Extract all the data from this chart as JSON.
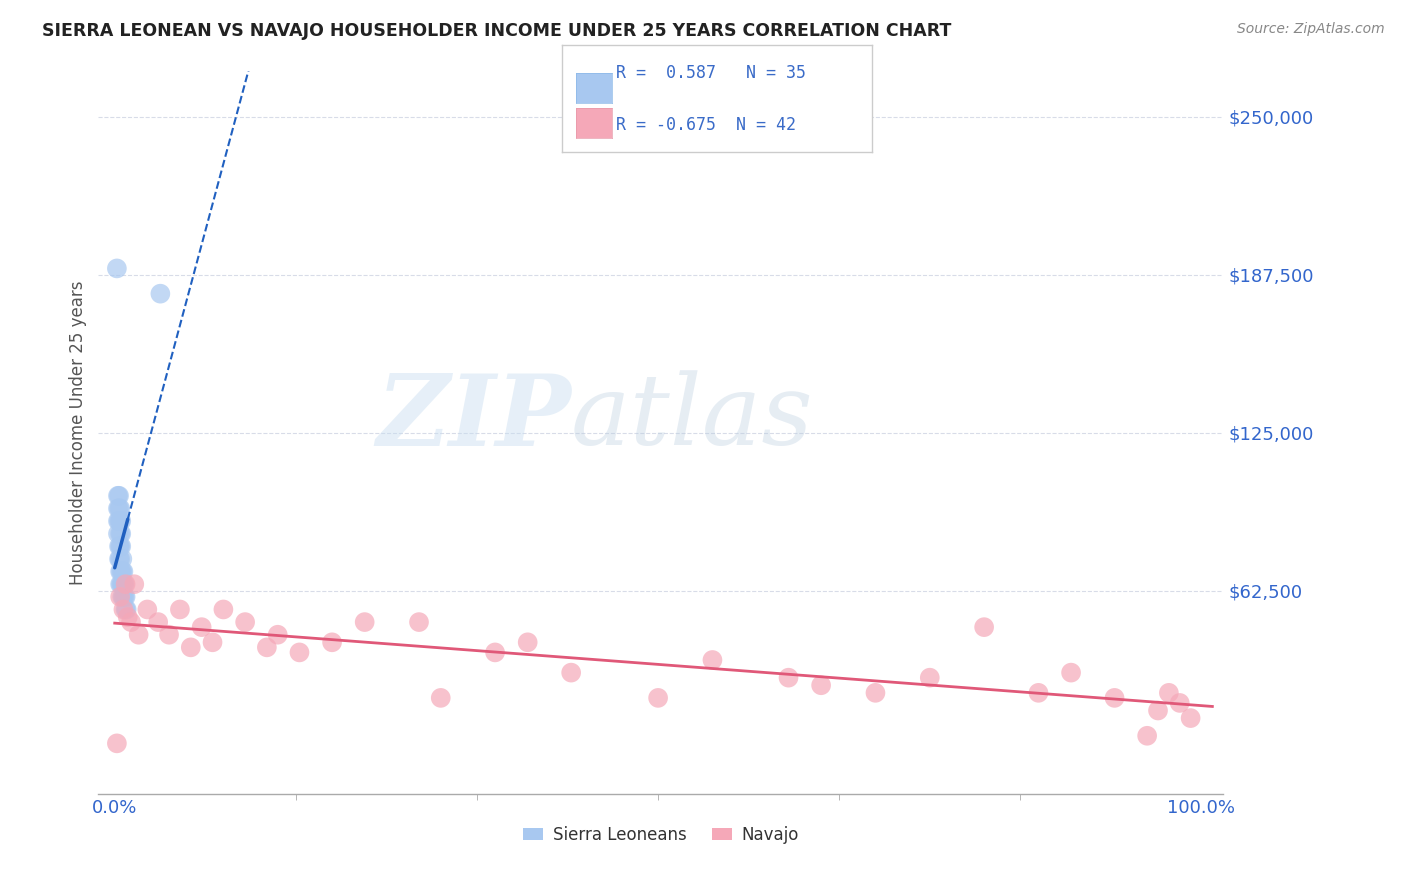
{
  "title": "SIERRA LEONEAN VS NAVAJO HOUSEHOLDER INCOME UNDER 25 YEARS CORRELATION CHART",
  "source": "Source: ZipAtlas.com",
  "ylabel": "Householder Income Under 25 years",
  "ytick_labels": [
    "$62,500",
    "$125,000",
    "$187,500",
    "$250,000"
  ],
  "ytick_values": [
    62500,
    125000,
    187500,
    250000
  ],
  "ylim": [
    -18000,
    268000
  ],
  "xlim": [
    -0.015,
    1.02
  ],
  "legend_blue_r": "R =  0.587",
  "legend_blue_n": "N = 35",
  "legend_pink_r": "R = -0.675",
  "legend_pink_n": "N = 42",
  "blue_scatter_color": "#a8c8f0",
  "pink_scatter_color": "#f5a8b8",
  "blue_line_color": "#2060c0",
  "pink_line_color": "#e05878",
  "legend_text_color": "#3a6bc8",
  "grid_color": "#d8dce8",
  "title_color": "#222222",
  "source_color": "#888888",
  "ylabel_color": "#555555",
  "xtick_color": "#3366cc",
  "ytick_color": "#3366cc",
  "sierra_x": [
    0.003,
    0.003,
    0.003,
    0.003,
    0.004,
    0.004,
    0.004,
    0.004,
    0.004,
    0.005,
    0.005,
    0.005,
    0.005,
    0.005,
    0.005,
    0.005,
    0.006,
    0.006,
    0.006,
    0.006,
    0.006,
    0.007,
    0.007,
    0.007,
    0.007,
    0.008,
    0.008,
    0.008,
    0.009,
    0.009,
    0.01,
    0.01,
    0.011,
    0.042,
    0.002
  ],
  "sierra_y": [
    100000,
    95000,
    90000,
    85000,
    100000,
    95000,
    90000,
    80000,
    75000,
    95000,
    90000,
    85000,
    80000,
    75000,
    70000,
    65000,
    90000,
    85000,
    80000,
    70000,
    65000,
    75000,
    70000,
    65000,
    60000,
    70000,
    65000,
    60000,
    65000,
    60000,
    60000,
    55000,
    55000,
    180000,
    190000
  ],
  "navajo_x": [
    0.002,
    0.005,
    0.008,
    0.01,
    0.012,
    0.015,
    0.018,
    0.022,
    0.03,
    0.04,
    0.05,
    0.06,
    0.07,
    0.08,
    0.09,
    0.1,
    0.12,
    0.14,
    0.15,
    0.17,
    0.2,
    0.23,
    0.28,
    0.3,
    0.35,
    0.38,
    0.42,
    0.5,
    0.55,
    0.62,
    0.65,
    0.7,
    0.75,
    0.8,
    0.85,
    0.88,
    0.92,
    0.95,
    0.96,
    0.97,
    0.98,
    0.99
  ],
  "navajo_y": [
    2000,
    60000,
    55000,
    65000,
    52000,
    50000,
    65000,
    45000,
    55000,
    50000,
    45000,
    55000,
    40000,
    48000,
    42000,
    55000,
    50000,
    40000,
    45000,
    38000,
    42000,
    50000,
    50000,
    20000,
    38000,
    42000,
    30000,
    20000,
    35000,
    28000,
    25000,
    22000,
    28000,
    48000,
    22000,
    30000,
    20000,
    5000,
    15000,
    22000,
    18000,
    12000
  ]
}
